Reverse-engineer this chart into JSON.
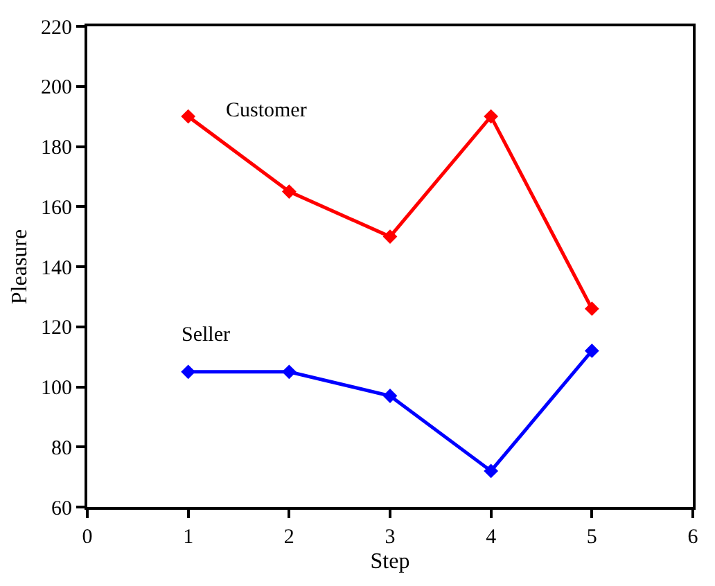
{
  "chart_data": {
    "type": "line",
    "xlabel": "Step",
    "ylabel": "Pleasure",
    "x": [
      1,
      2,
      3,
      4,
      5
    ],
    "series": [
      {
        "name": "Customer",
        "color": "#ff0000",
        "values": [
          190,
          165,
          150,
          190,
          126
        ]
      },
      {
        "name": "Seller",
        "color": "#0000ff",
        "values": [
          105,
          105,
          97,
          72,
          112
        ]
      }
    ],
    "xlim": [
      0,
      6
    ],
    "xticks": [
      0,
      1,
      2,
      3,
      4,
      5,
      6
    ],
    "ylim": [
      60,
      220
    ],
    "yticks": [
      60,
      80,
      100,
      120,
      140,
      160,
      180,
      200,
      220
    ],
    "legend": false,
    "marker": "diamond",
    "line_style": "solid"
  }
}
